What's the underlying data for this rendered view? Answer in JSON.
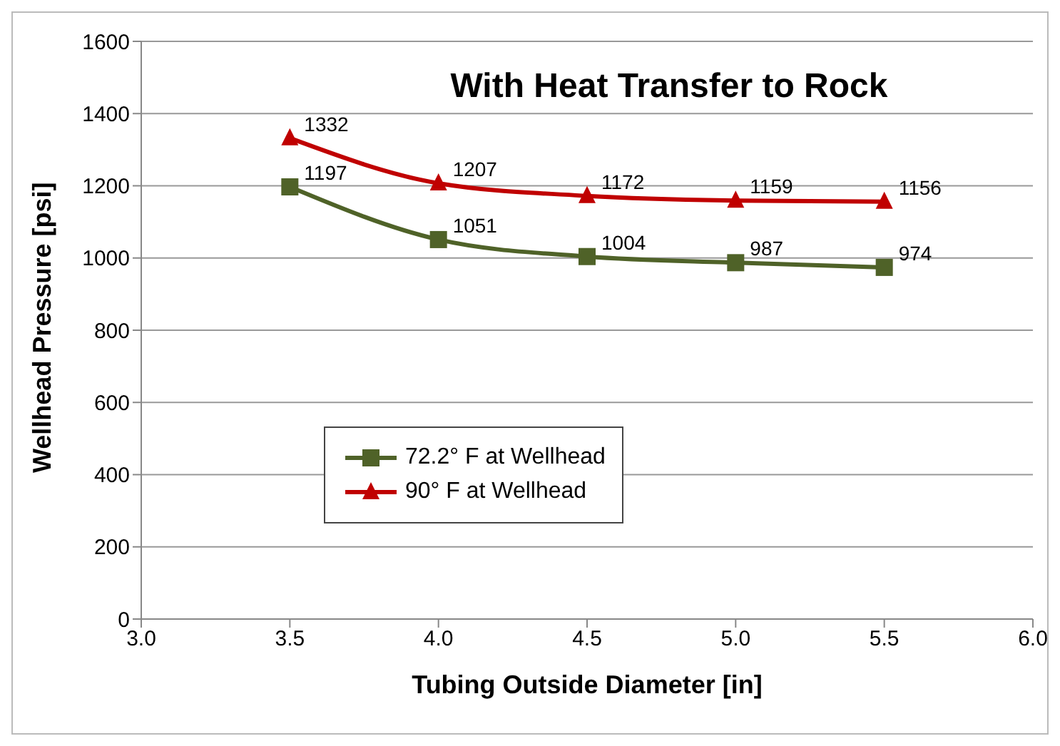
{
  "chart_data": {
    "type": "line",
    "title": "With Heat Transfer to Rock",
    "xlabel": "Tubing Outside Diameter [in]",
    "ylabel": "Wellhead Pressure [psi]",
    "xlim": [
      3,
      6
    ],
    "xticks": [
      {
        "value": 3,
        "label": "3.0"
      },
      {
        "value": 3.5,
        "label": "3.5"
      },
      {
        "value": 4,
        "label": "4.0"
      },
      {
        "value": 4.5,
        "label": "4.5"
      },
      {
        "value": 5,
        "label": "5.0"
      },
      {
        "value": 5.5,
        "label": "5.5"
      },
      {
        "value": 6,
        "label": "6.0"
      }
    ],
    "ylim": [
      0,
      1600
    ],
    "yticks": [
      0,
      200,
      400,
      600,
      800,
      1000,
      1200,
      1400,
      1600
    ],
    "grid": "y",
    "legend": "bottom",
    "data_labels": true,
    "line_style": "solid",
    "series": [
      {
        "name": "72.2° F at Wellhead",
        "color": "#4f6228",
        "marker": "square",
        "x": [
          3.5,
          4,
          4.5,
          5,
          5.5
        ],
        "values": [
          1197,
          1051,
          1004,
          987,
          974
        ]
      },
      {
        "name": "90° F at Wellhead",
        "color": "#c00000",
        "marker": "triangle",
        "x": [
          3.5,
          4,
          4.5,
          5,
          5.5
        ],
        "values": [
          1332,
          1207,
          1172,
          1159,
          1156
        ]
      }
    ]
  }
}
